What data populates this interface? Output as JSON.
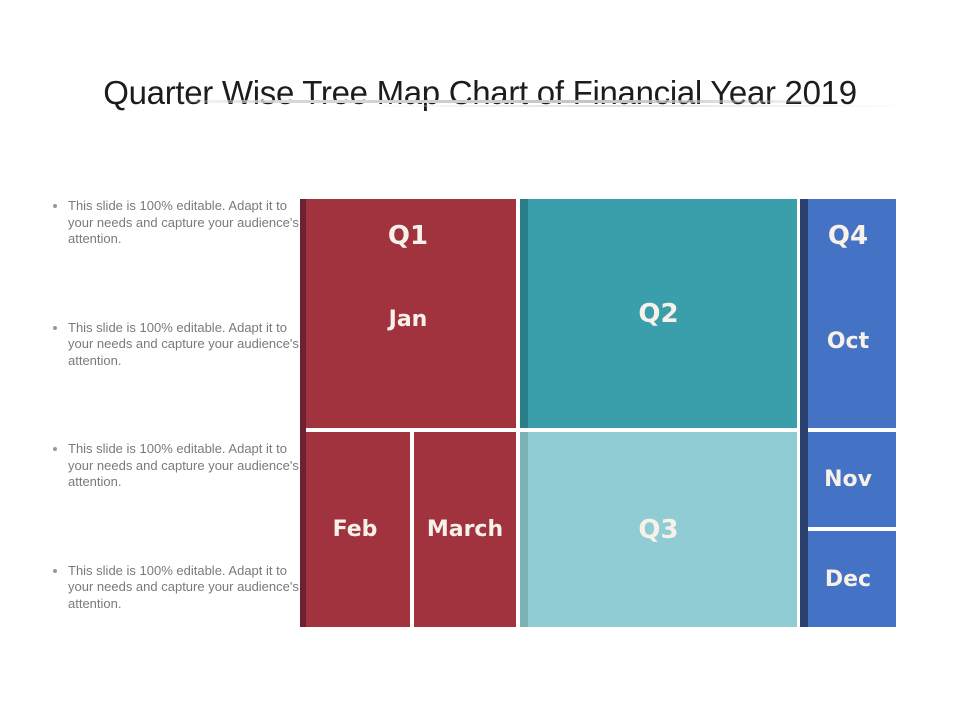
{
  "slide": {
    "title": "Quarter Wise Tree Map Chart of Financial Year 2019"
  },
  "bullets": [
    "This slide is 100% editable. Adapt it to your needs and capture your audience's attention.",
    "This slide is 100% editable. Adapt it to your needs and capture your audience's attention.",
    "This slide is 100% editable. Adapt it to your needs and capture your audience's attention.",
    "This slide is 100% editable. Adapt it to your needs and capture your audience's attention."
  ],
  "chart_data": {
    "type": "treemap",
    "title": "Quarter Wise Tree Map Chart of Financial Year 2019",
    "values_labeled": false,
    "legend": "none",
    "label_color": "#F7F1E9",
    "groups": [
      {
        "name": "Q1",
        "color": "#A0333E",
        "edge_color": "#6E2130",
        "area_pct": 36.8,
        "children": [
          {
            "name": "Jan",
            "area_pct": 19.7
          },
          {
            "name": "Feb",
            "area_pct": 8.6
          },
          {
            "name": "March",
            "area_pct": 8.5
          }
        ]
      },
      {
        "name": "Q2",
        "color": "#3B9FAB",
        "edge_color": "#2A7E8A",
        "area_pct": 25.3
      },
      {
        "name": "Q3",
        "color": "#90CCD3",
        "edge_color": "#7EB2B9",
        "area_pct": 21.5
      },
      {
        "name": "Q4",
        "color": "#4472C4",
        "edge_color": "#2B4170",
        "area_pct": 16.4,
        "children": [
          {
            "name": "Oct",
            "area_pct": 8.8
          },
          {
            "name": "Nov",
            "area_pct": 3.7
          },
          {
            "name": "Dec",
            "area_pct": 3.9
          }
        ]
      }
    ]
  }
}
